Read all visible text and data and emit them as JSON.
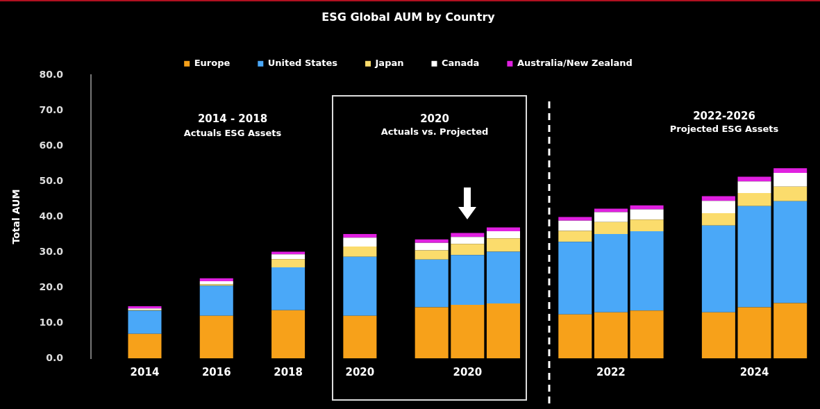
{
  "chart_data": {
    "type": "bar",
    "title": "ESG Global AUM by Country",
    "ylabel": "Total AUM",
    "stacked": true,
    "legend": "top",
    "categories": [
      null,
      "2014",
      null,
      "2016",
      null,
      "2018",
      null,
      "2020",
      null,
      null,
      "2020",
      null,
      null,
      null,
      "2022",
      null,
      null,
      null,
      "2024",
      null
    ],
    "series": [
      {
        "name": "Europe",
        "color": "#f7a11a",
        "values": [
          null,
          6.9,
          null,
          12.0,
          null,
          13.6,
          null,
          12.0,
          null,
          14.4,
          15.1,
          15.5,
          null,
          12.4,
          13.0,
          13.5,
          null,
          13.0,
          14.4,
          15.6
        ]
      },
      {
        "name": "United States",
        "color": "#4aa8f8",
        "values": [
          null,
          6.6,
          null,
          8.5,
          null,
          12.1,
          null,
          16.7,
          null,
          13.5,
          14.1,
          14.6,
          null,
          20.5,
          22.1,
          22.4,
          null,
          24.5,
          28.6,
          28.8
        ]
      },
      {
        "name": "Japan",
        "color": "#fbdc6c",
        "values": [
          null,
          0.2,
          null,
          0.4,
          null,
          2.3,
          null,
          2.9,
          null,
          2.6,
          3.1,
          3.8,
          null,
          3.1,
          3.4,
          3.3,
          null,
          3.5,
          3.7,
          4.1
        ]
      },
      {
        "name": "Canada",
        "color": "#ffffff",
        "values": [
          null,
          0.4,
          null,
          0.9,
          null,
          1.4,
          null,
          2.5,
          null,
          2.1,
          2.0,
          2.0,
          null,
          2.9,
          2.8,
          2.9,
          null,
          3.5,
          3.3,
          3.9
        ]
      },
      {
        "name": "Australia/New Zealand",
        "color": "#e020e0",
        "values": [
          null,
          0.6,
          null,
          0.8,
          null,
          0.7,
          null,
          1.0,
          null,
          1.0,
          1.1,
          1.1,
          null,
          1.0,
          1.0,
          1.1,
          null,
          1.3,
          1.3,
          1.3
        ]
      }
    ],
    "ylim": [
      0,
      80
    ],
    "yticks": [
      {
        "value": 0,
        "label": "0.0"
      },
      {
        "value": 10,
        "label": "10.0"
      },
      {
        "value": 20,
        "label": "20.0"
      },
      {
        "value": 30,
        "label": "30.0"
      },
      {
        "value": 40,
        "label": "40.0"
      },
      {
        "value": 50,
        "label": "50.0"
      },
      {
        "value": 60,
        "label": "60.0"
      },
      {
        "value": 70,
        "label": "70.0"
      },
      {
        "value": 80,
        "label": "80.0"
      }
    ],
    "grid": false,
    "annotations": [
      "2014 - 2018",
      "Actuals ESG Assets",
      "2020",
      "Actuals vs. Projected",
      "2022-2026",
      "Projected ESG Assets"
    ]
  }
}
